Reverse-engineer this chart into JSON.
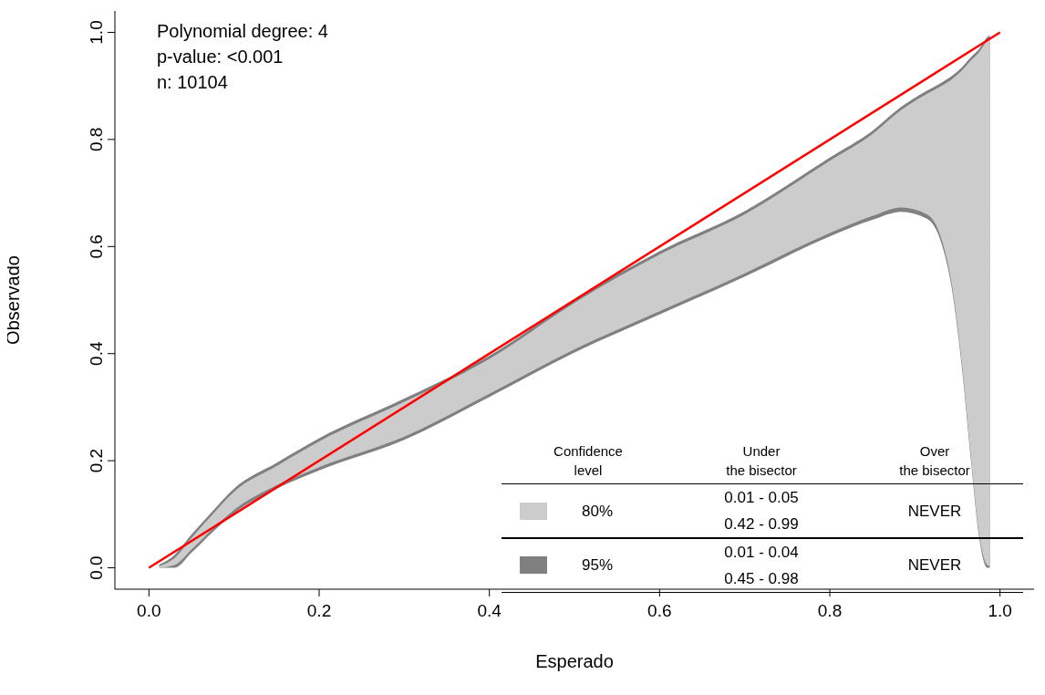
{
  "chart_data": {
    "type": "area",
    "xlabel": "Esperado",
    "ylabel": "Observado",
    "xlim": [
      -0.04,
      1.04
    ],
    "ylim": [
      -0.04,
      1.04
    ],
    "xticks": [
      {
        "value": 0,
        "label": "0.0"
      },
      {
        "value": 0.2,
        "label": "0.2"
      },
      {
        "value": 0.4,
        "label": "0.4"
      },
      {
        "value": 0.6,
        "label": "0.6"
      },
      {
        "value": 0.8,
        "label": "0.8"
      },
      {
        "value": 1,
        "label": "1.0"
      }
    ],
    "yticks": [
      {
        "value": 0,
        "label": "0.0"
      },
      {
        "value": 0.2,
        "label": "0.2"
      },
      {
        "value": 0.4,
        "label": "0.4"
      },
      {
        "value": 0.6,
        "label": "0.6"
      },
      {
        "value": 0.8,
        "label": "0.8"
      },
      {
        "value": 1,
        "label": "1.0"
      }
    ],
    "grid": false,
    "legend": "bottom right",
    "legend_title": "Confidence\nlevel",
    "annotations": [
      "Polynomial degree: 4\np-value: <0.001\nn: 10104",
      "Under\nthe bisector",
      "Over\nthe bisector",
      "0.01 - 0.05\n0.42 - 0.99",
      "NEVER",
      "0.01 - 0.04\n0.45 - 0.98",
      "NEVER"
    ],
    "series": [
      {
        "name": "95%",
        "color": "#808080",
        "values": [
          null,
          null,
          null,
          null,
          null,
          null,
          null,
          null,
          null,
          null,
          null,
          null,
          null,
          null,
          null,
          null,
          null,
          null,
          null,
          null,
          null,
          null,
          null
        ],
        "x": [
          0.012,
          0.03,
          0.05,
          0.075,
          0.1,
          0.15,
          0.2,
          0.3,
          0.4,
          0.5,
          0.6,
          0.7,
          0.8,
          0.85,
          0.884,
          0.914,
          0.931,
          0.943,
          0.956,
          0.966,
          0.975,
          0.985,
          0.988
        ],
        "lower": [
          0.0,
          0.0,
          0.028,
          0.067,
          0.102,
          0.148,
          0.182,
          0.239,
          0.319,
          0.402,
          0.473,
          0.544,
          0.619,
          0.65,
          0.665,
          0.652,
          0.607,
          0.525,
          0.362,
          0.198,
          0.062,
          0.0,
          0.0
        ],
        "upper": [
          0.006,
          0.024,
          0.062,
          0.106,
          0.148,
          0.196,
          0.242,
          0.316,
          0.396,
          0.501,
          0.591,
          0.666,
          0.766,
          0.816,
          0.861,
          0.891,
          0.906,
          0.918,
          0.936,
          0.954,
          0.968,
          0.991,
          0.995
        ]
      },
      {
        "name": "80%",
        "color": "#cccccc",
        "values": [
          null,
          null,
          null,
          null,
          null,
          null,
          null,
          null,
          null,
          null,
          null,
          null,
          null,
          null,
          null,
          null,
          null,
          null,
          null,
          null,
          null,
          null,
          null
        ],
        "x": [
          0.012,
          0.03,
          0.05,
          0.075,
          0.1,
          0.15,
          0.2,
          0.3,
          0.4,
          0.5,
          0.6,
          0.7,
          0.8,
          0.85,
          0.884,
          0.914,
          0.931,
          0.943,
          0.956,
          0.966,
          0.975,
          0.985,
          0.988
        ],
        "lower": [
          0.0,
          0.005,
          0.034,
          0.073,
          0.108,
          0.154,
          0.188,
          0.245,
          0.325,
          0.408,
          0.479,
          0.55,
          0.625,
          0.657,
          0.673,
          0.66,
          0.615,
          0.533,
          0.37,
          0.205,
          0.068,
          0.005,
          0.003
        ],
        "upper": [
          0.003,
          0.018,
          0.056,
          0.1,
          0.142,
          0.19,
          0.236,
          0.31,
          0.39,
          0.495,
          0.585,
          0.66,
          0.76,
          0.81,
          0.855,
          0.885,
          0.9,
          0.912,
          0.93,
          0.948,
          0.962,
          0.985,
          0.99
        ]
      },
      {
        "type": "line",
        "color": "#ff0000",
        "x": [
          0,
          1
        ],
        "values": [
          0,
          1
        ]
      }
    ]
  }
}
